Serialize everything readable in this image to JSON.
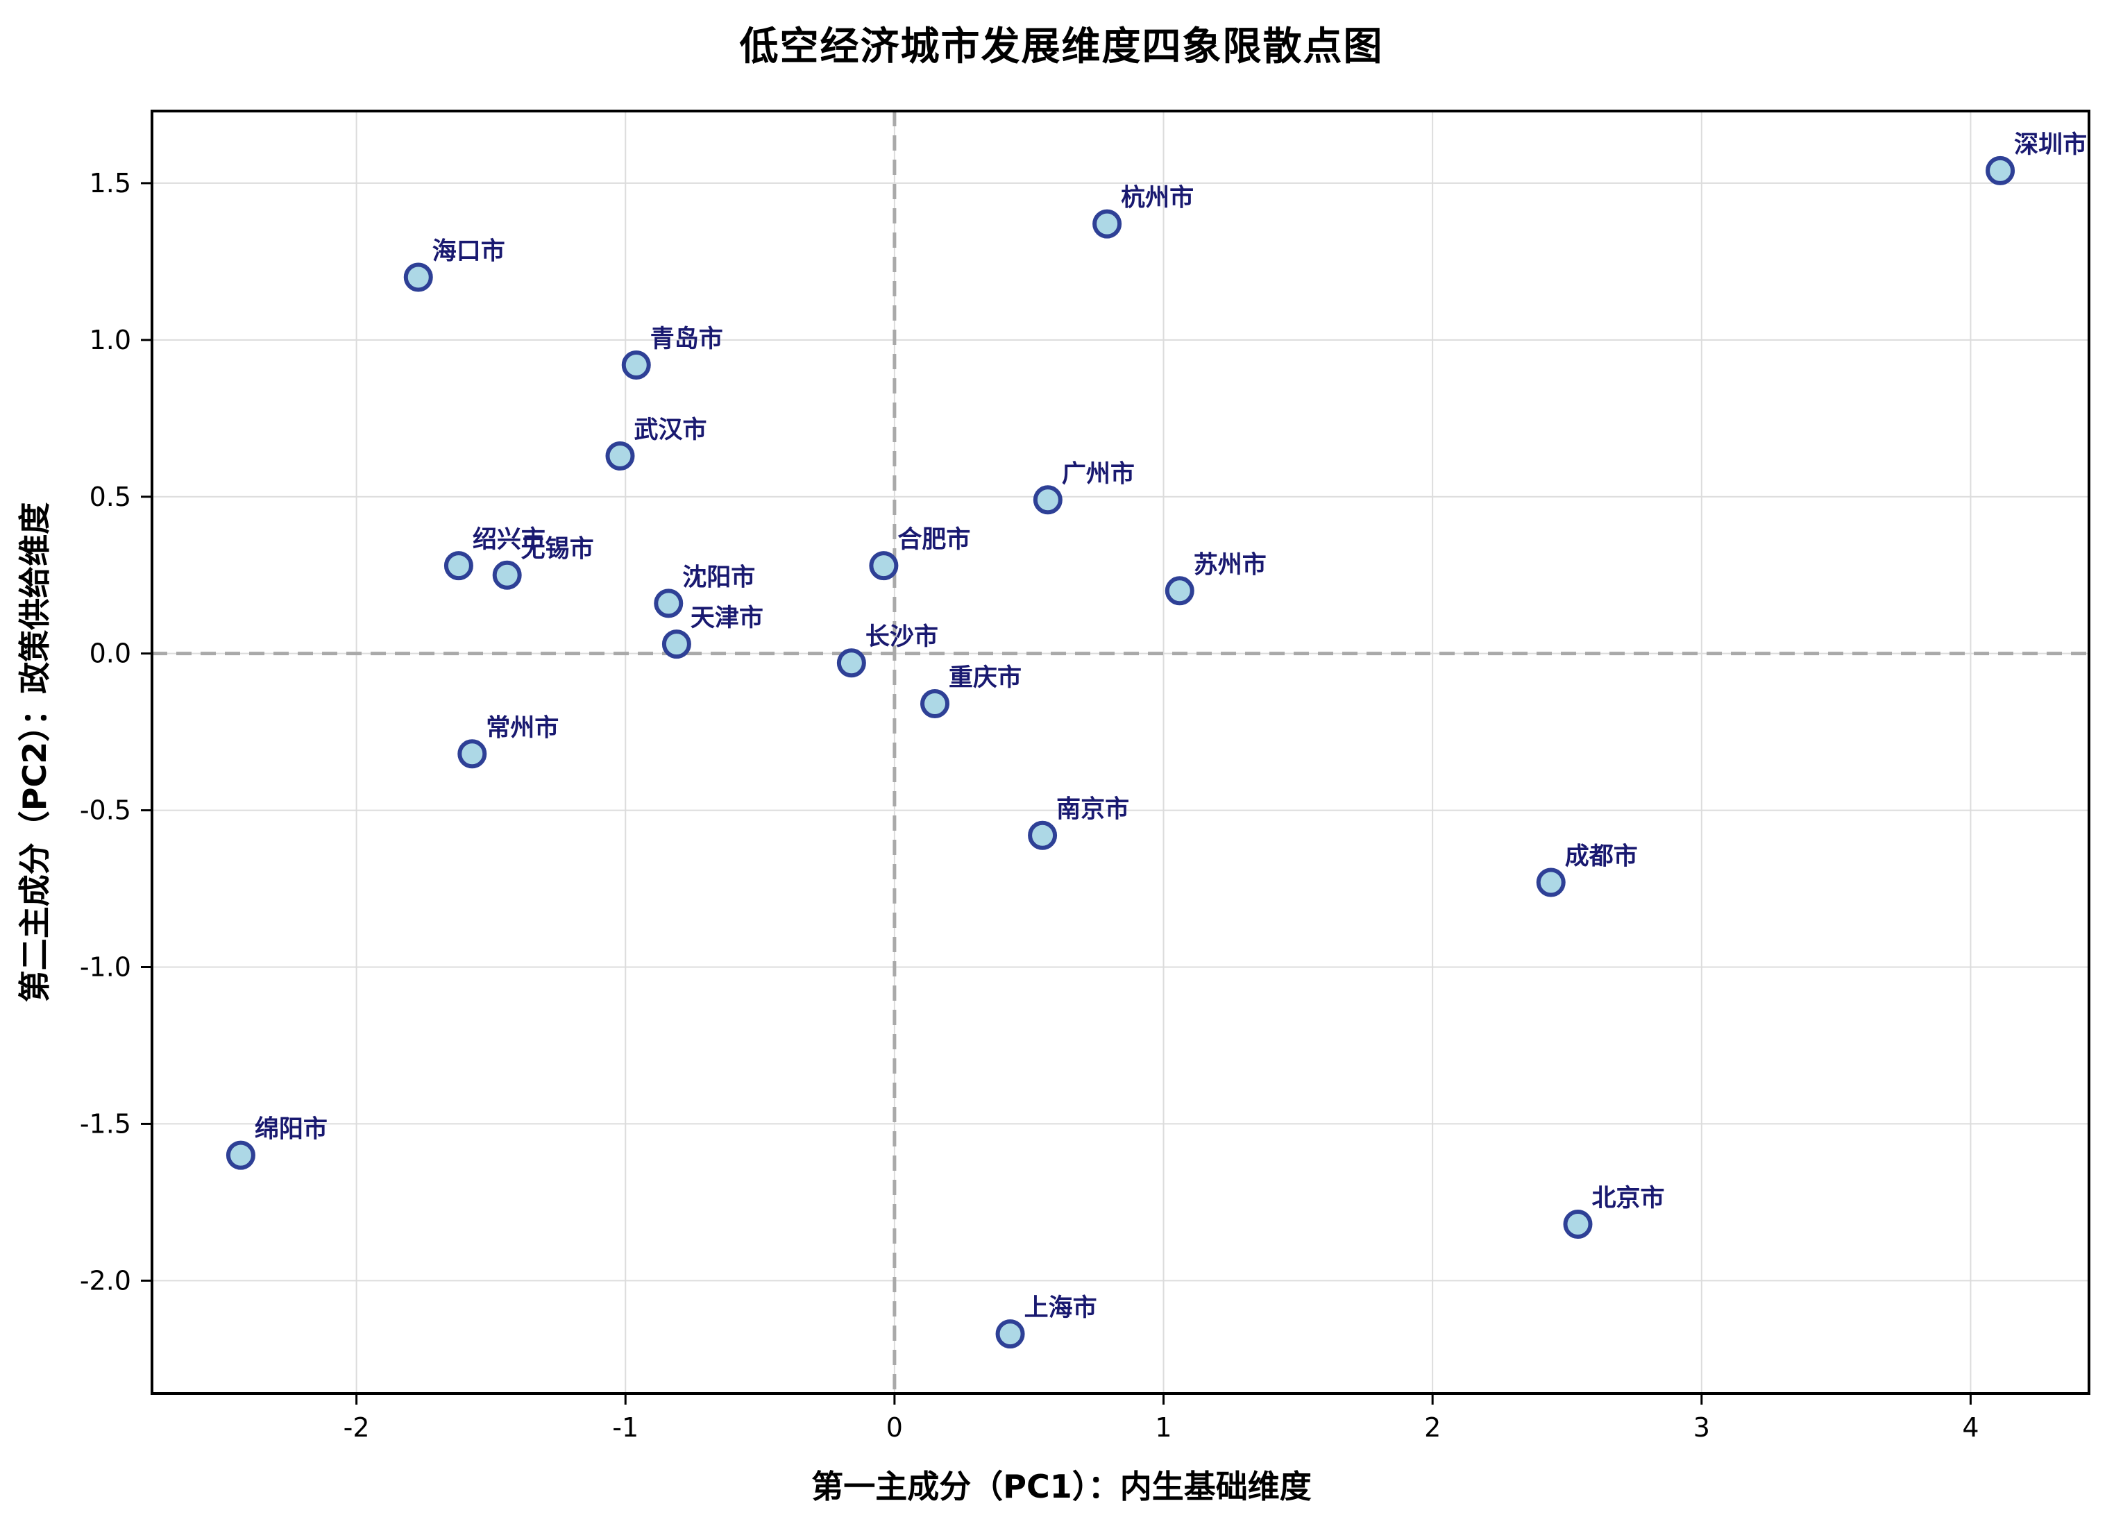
{
  "chart_data": {
    "type": "scatter",
    "title": "低空经济城市发展维度四象限散点图",
    "xlabel": "第一主成分（PC1）：内生基础维度",
    "ylabel": "第二主成分（PC2）：政策供给维度",
    "xlim": [
      -2.76,
      4.44
    ],
    "ylim": [
      -2.36,
      1.73
    ],
    "x_tick_values": [
      -2,
      -1,
      0,
      1,
      2,
      3,
      4
    ],
    "x_tick_labels": [
      "-2",
      "-1",
      "0",
      "1",
      "2",
      "3",
      "4"
    ],
    "y_tick_values": [
      -2.0,
      -1.5,
      -1.0,
      -0.5,
      0.0,
      0.5,
      1.0,
      1.5
    ],
    "y_tick_labels": [
      "-2.0",
      "-1.5",
      "-1.0",
      "-0.5",
      "0.0",
      "0.5",
      "1.0",
      "1.5"
    ],
    "grid": true,
    "legend": "none",
    "zero_lines": {
      "x": 0,
      "y": 0,
      "style": "dashed"
    },
    "points": [
      {
        "label": "深圳市",
        "x": 4.11,
        "y": 1.54
      },
      {
        "label": "杭州市",
        "x": 0.79,
        "y": 1.37
      },
      {
        "label": "海口市",
        "x": -1.77,
        "y": 1.2
      },
      {
        "label": "青岛市",
        "x": -0.96,
        "y": 0.92
      },
      {
        "label": "武汉市",
        "x": -1.02,
        "y": 0.63
      },
      {
        "label": "广州市",
        "x": 0.57,
        "y": 0.49
      },
      {
        "label": "合肥市",
        "x": -0.04,
        "y": 0.28
      },
      {
        "label": "绍兴市",
        "x": -1.62,
        "y": 0.28
      },
      {
        "label": "无锡市",
        "x": -1.44,
        "y": 0.25
      },
      {
        "label": "苏州市",
        "x": 1.06,
        "y": 0.2
      },
      {
        "label": "沈阳市",
        "x": -0.84,
        "y": 0.16
      },
      {
        "label": "天津市",
        "x": -0.81,
        "y": 0.03
      },
      {
        "label": "长沙市",
        "x": -0.16,
        "y": -0.03
      },
      {
        "label": "重庆市",
        "x": 0.15,
        "y": -0.16
      },
      {
        "label": "常州市",
        "x": -1.57,
        "y": -0.32
      },
      {
        "label": "南京市",
        "x": 0.55,
        "y": -0.58
      },
      {
        "label": "成都市",
        "x": 2.44,
        "y": -0.73
      },
      {
        "label": "绵阳市",
        "x": -2.43,
        "y": -1.6
      },
      {
        "label": "北京市",
        "x": 2.54,
        "y": -1.82
      },
      {
        "label": "上海市",
        "x": 0.43,
        "y": -2.17
      }
    ],
    "colors": {
      "marker_fill": "#ADD8E6",
      "marker_edge": "#2E4096",
      "point_label": "#191970",
      "gridline": "#DCDCDC",
      "zero_line": "#A9A9A9",
      "spine": "#000000",
      "tick_label": "#000000"
    }
  }
}
